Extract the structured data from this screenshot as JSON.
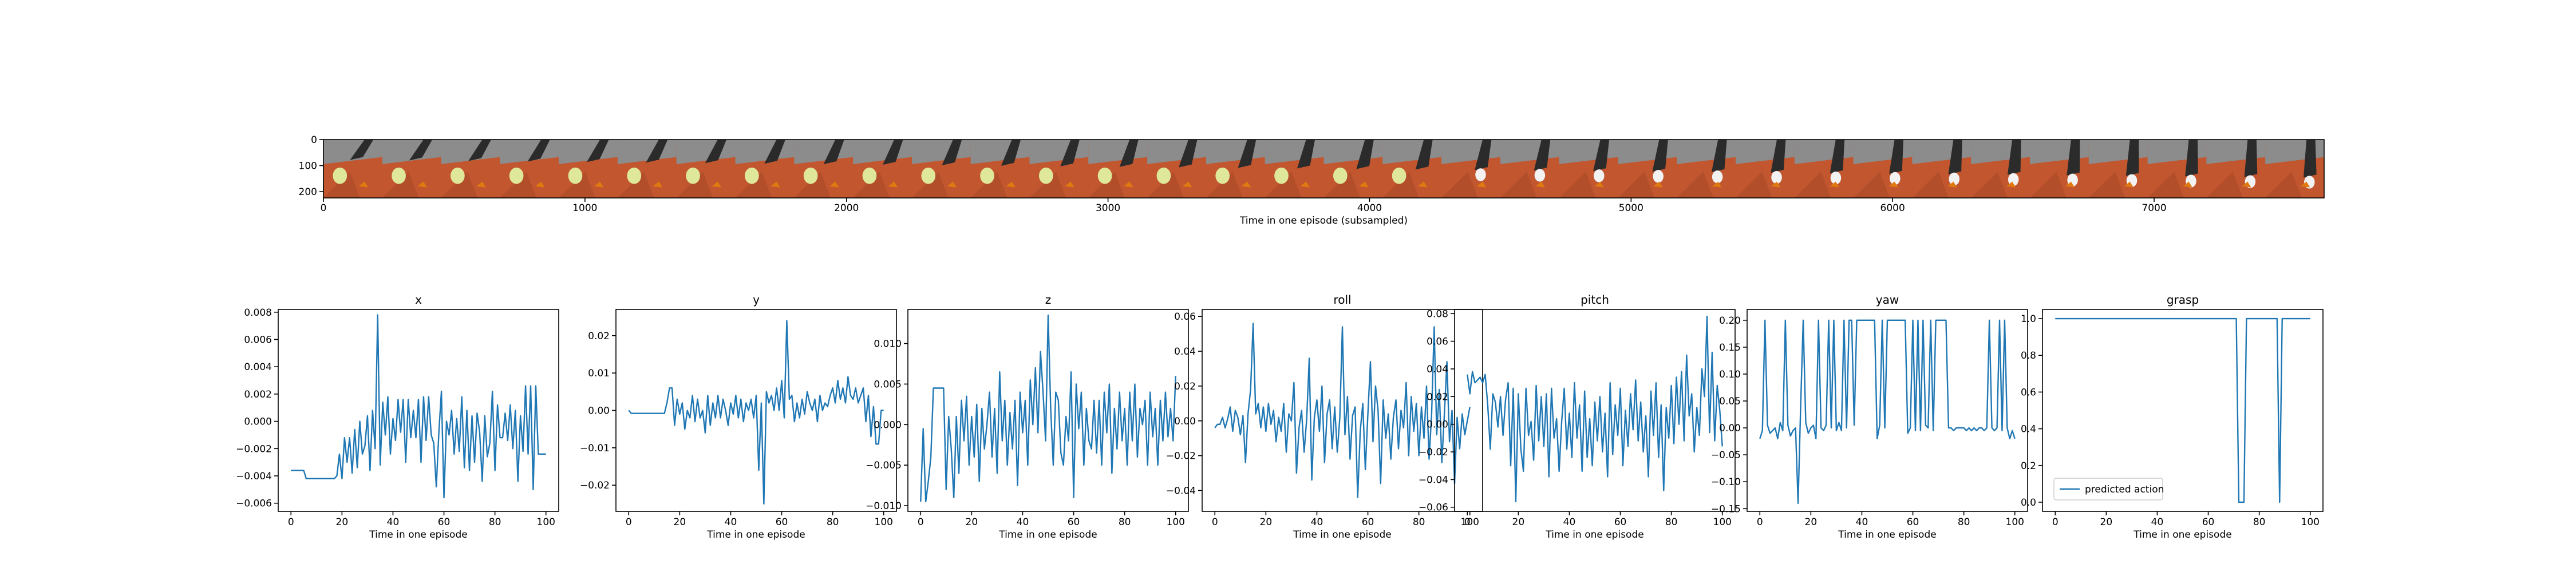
{
  "strip": {
    "xlabel": "Time in one episode (subsampled)",
    "x_ticks": [
      0,
      1000,
      2000,
      3000,
      4000,
      5000,
      6000,
      7000
    ],
    "x_range": [
      0,
      7650
    ],
    "y_ticks": [
      0,
      100,
      200
    ],
    "y_range": [
      0,
      224
    ],
    "frame_count": 34,
    "colors": {
      "floor": "#c2562f",
      "wall": "#8c8c8c",
      "robot": "#2b2b2b",
      "ball": "#dfe89a",
      "object": "#e07a10"
    }
  },
  "chart_data": [
    {
      "type": "line",
      "title": "x",
      "xlabel": "Time in one episode",
      "ylabel": "",
      "xlim": [
        -5,
        105
      ],
      "ylim": [
        -0.0066,
        0.0082
      ],
      "x_ticks": [
        0,
        20,
        40,
        60,
        80,
        100
      ],
      "y_ticks": [
        -0.006,
        -0.004,
        -0.002,
        0.0,
        0.002,
        0.004,
        0.006,
        0.008
      ],
      "y_tick_labels": [
        "−0.006",
        "−0.004",
        "−0.002",
        "0.000",
        "0.002",
        "0.004",
        "0.006",
        "0.008"
      ],
      "y_decimals": 3,
      "color": "#1f77b4",
      "y": [
        -0.0036,
        -0.0036,
        -0.0036,
        -0.0036,
        -0.0036,
        -0.0036,
        -0.0042,
        -0.0042,
        -0.0042,
        -0.0042,
        -0.0042,
        -0.0042,
        -0.0042,
        -0.0042,
        -0.0042,
        -0.0042,
        -0.0042,
        -0.0042,
        -0.004,
        -0.0024,
        -0.0042,
        -0.0012,
        -0.003,
        -0.0012,
        -0.0038,
        -0.0006,
        -0.0034,
        0.0,
        -0.0024,
        -0.0018,
        0.0004,
        -0.0036,
        0.0008,
        -0.002,
        0.0078,
        -0.0032,
        0.0014,
        -0.001,
        0.0018,
        -0.0024,
        0.0002,
        -0.0014,
        0.0016,
        -0.0008,
        0.0016,
        -0.003,
        0.0016,
        -0.0012,
        0.0008,
        -0.0012,
        0.0016,
        -0.003,
        0.0018,
        -0.0014,
        0.0018,
        -0.001,
        -0.0016,
        -0.0048,
        -0.0008,
        0.0022,
        -0.0056,
        0.0,
        -0.001,
        0.0008,
        -0.0024,
        0.0002,
        -0.0022,
        0.0018,
        -0.0034,
        0.0008,
        -0.0036,
        0.0004,
        -0.003,
        0.0006,
        -0.0008,
        -0.0044,
        0.0004,
        -0.0026,
        -0.0016,
        0.0022,
        -0.0036,
        0.0012,
        -0.0012,
        -0.0012,
        0.0006,
        -0.0014,
        0.0012,
        -0.002,
        0.0008,
        -0.0044,
        0.0004,
        -0.0022,
        0.0026,
        -0.0024,
        0.0026,
        -0.005,
        0.0026,
        -0.0024,
        -0.0024,
        -0.0024,
        -0.0024
      ]
    },
    {
      "type": "line",
      "title": "y",
      "xlabel": "Time in one episode",
      "ylabel": "",
      "xlim": [
        -5,
        105
      ],
      "ylim": [
        -0.027,
        0.027
      ],
      "x_ticks": [
        0,
        20,
        40,
        60,
        80,
        100
      ],
      "y_ticks": [
        -0.02,
        -0.01,
        0.0,
        0.01,
        0.02
      ],
      "y_tick_labels": [
        "−0.02",
        "−0.01",
        "0.00",
        "0.01",
        "0.02"
      ],
      "y_decimals": 3,
      "color": "#1f77b4",
      "y": [
        0.0,
        -0.0008,
        -0.0008,
        -0.0008,
        -0.0008,
        -0.0008,
        -0.0008,
        -0.0008,
        -0.0008,
        -0.0008,
        -0.0008,
        -0.0008,
        -0.0008,
        -0.0008,
        -0.0008,
        0.002,
        0.006,
        0.006,
        -0.004,
        0.003,
        -0.001,
        0.002,
        -0.005,
        0.0,
        -0.002,
        0.004,
        -0.003,
        0.003,
        -0.002,
        0.0,
        -0.006,
        0.004,
        -0.004,
        0.002,
        -0.002,
        0.004,
        -0.002,
        0.003,
        0.0,
        -0.004,
        0.002,
        -0.001,
        0.004,
        -0.002,
        0.003,
        -0.003,
        0.002,
        0.0,
        0.003,
        -0.002,
        0.004,
        -0.016,
        0.002,
        -0.025,
        0.005,
        0.002,
        0.004,
        0.0,
        0.006,
        0.0,
        0.008,
        -0.002,
        0.024,
        0.003,
        0.004,
        -0.003,
        0.002,
        -0.002,
        0.003,
        -0.001,
        0.005,
        0.002,
        0.0,
        0.003,
        -0.003,
        0.004,
        0.0,
        0.002,
        0.001,
        0.004,
        0.006,
        0.002,
        0.008,
        0.003,
        0.006,
        0.002,
        0.009,
        0.004,
        0.003,
        0.006,
        0.002,
        0.004,
        0.006,
        -0.003,
        0.004,
        -0.007,
        0.001,
        -0.009,
        -0.009,
        0.0,
        0.0
      ]
    },
    {
      "type": "line",
      "title": "z",
      "xlabel": "Time in one episode",
      "ylabel": "",
      "xlim": [
        -5,
        105
      ],
      "ylim": [
        -0.0107,
        0.0142
      ],
      "x_ticks": [
        0,
        20,
        40,
        60,
        80,
        100
      ],
      "y_ticks": [
        -0.01,
        -0.005,
        0.0,
        0.005,
        0.01
      ],
      "y_tick_labels": [
        "−0.010",
        "−0.005",
        "0.000",
        "0.005",
        "0.010"
      ],
      "y_decimals": 4,
      "color": "#1f77b4",
      "y": [
        -0.0095,
        -0.0005,
        -0.0095,
        -0.007,
        -0.004,
        0.0045,
        0.0045,
        0.0045,
        0.0045,
        0.0045,
        -0.008,
        0.001,
        -0.003,
        -0.009,
        0.001,
        -0.006,
        0.003,
        -0.002,
        0.0035,
        -0.005,
        0.001,
        -0.004,
        0.0025,
        -0.007,
        0.002,
        -0.003,
        0.0,
        0.004,
        -0.004,
        0.002,
        -0.006,
        0.0065,
        -0.002,
        0.003,
        -0.005,
        0.0015,
        -0.003,
        0.003,
        -0.0075,
        0.004,
        -0.001,
        0.003,
        -0.005,
        0.0055,
        0.0,
        0.007,
        -0.001,
        0.009,
        0.004,
        -0.002,
        0.0135,
        0.002,
        -0.005,
        0.004,
        0.003,
        -0.0035,
        -0.005,
        0.001,
        -0.002,
        0.0065,
        -0.009,
        0.005,
        -0.0005,
        0.004,
        -0.005,
        0.002,
        -0.002,
        -0.003,
        0.003,
        -0.0035,
        0.003,
        -0.005,
        0.004,
        -0.001,
        0.005,
        -0.006,
        0.002,
        -0.003,
        0.004,
        -0.002,
        0.002,
        -0.005,
        0.004,
        -0.002,
        0.005,
        -0.004,
        0.002,
        0.0,
        0.003,
        -0.005,
        0.004,
        -0.0015,
        0.002,
        -0.005,
        0.003,
        -0.002,
        0.004,
        -0.0015,
        0.002,
        -0.002,
        0.006
      ]
    },
    {
      "type": "line",
      "title": "roll",
      "xlabel": "Time in one episode",
      "ylabel": "",
      "xlim": [
        -5,
        105
      ],
      "ylim": [
        -0.052,
        0.064
      ],
      "x_ticks": [
        0,
        20,
        40,
        60,
        80,
        100
      ],
      "y_ticks": [
        -0.04,
        -0.02,
        0.0,
        0.02,
        0.04,
        0.06
      ],
      "y_tick_labels": [
        "−0.04",
        "−0.02",
        "0.00",
        "0.02",
        "0.04",
        "0.06"
      ],
      "y_decimals": 3,
      "color": "#1f77b4",
      "y": [
        -0.004,
        -0.002,
        -0.002,
        0.002,
        -0.004,
        0.001,
        0.008,
        -0.006,
        0.006,
        0.002,
        -0.008,
        0.003,
        -0.024,
        0.004,
        0.018,
        0.056,
        0.004,
        0.01,
        -0.004,
        0.008,
        -0.006,
        0.01,
        -0.002,
        0.006,
        -0.012,
        0.002,
        -0.006,
        0.01,
        -0.018,
        0.004,
        0.0,
        0.022,
        -0.03,
        -0.004,
        0.006,
        -0.018,
        0.001,
        0.036,
        -0.034,
        0.002,
        0.012,
        -0.006,
        0.02,
        -0.024,
        0.004,
        0.012,
        -0.016,
        0.008,
        -0.018,
        0.002,
        0.054,
        -0.008,
        0.014,
        -0.022,
        0.003,
        0.008,
        -0.044,
        -0.006,
        0.01,
        -0.028,
        0.004,
        0.034,
        -0.012,
        0.02,
        0.006,
        -0.036,
        0.012,
        -0.01,
        0.004,
        -0.022,
        0.002,
        0.012,
        -0.016,
        0.006,
        -0.004,
        0.022,
        -0.02,
        0.014,
        -0.006,
        0.01,
        -0.02,
        0.008,
        -0.01,
        0.02,
        -0.022,
        0.004,
        0.054,
        -0.008,
        0.018,
        -0.024,
        0.004,
        0.034,
        -0.012,
        0.006,
        -0.036,
        0.002,
        -0.016,
        0.004,
        -0.008,
        0.0,
        0.008
      ]
    },
    {
      "type": "line",
      "title": "pitch",
      "xlabel": "Time in one episode",
      "ylabel": "",
      "xlim": [
        -5,
        105
      ],
      "ylim": [
        -0.063,
        0.083
      ],
      "x_ticks": [
        0,
        20,
        40,
        60,
        80,
        100
      ],
      "y_ticks": [
        -0.06,
        -0.04,
        -0.02,
        0.0,
        0.02,
        0.04,
        0.06,
        0.08
      ],
      "y_tick_labels": [
        "−0.06",
        "−0.04",
        "−0.02",
        "0.00",
        "0.02",
        "0.04",
        "0.06",
        "0.08"
      ],
      "y_decimals": 3,
      "color": "#1f77b4",
      "y": [
        0.036,
        0.022,
        0.038,
        0.03,
        0.032,
        0.034,
        0.03,
        0.036,
        0.014,
        -0.018,
        0.022,
        0.016,
        -0.002,
        0.02,
        -0.008,
        0.018,
        0.03,
        -0.03,
        0.026,
        -0.056,
        0.022,
        -0.018,
        -0.034,
        0.026,
        -0.008,
        0.002,
        -0.026,
        0.028,
        -0.012,
        0.02,
        -0.016,
        0.022,
        -0.038,
        0.026,
        -0.01,
        0.004,
        -0.034,
        0.002,
        0.026,
        -0.018,
        0.008,
        -0.024,
        0.03,
        -0.01,
        0.014,
        -0.034,
        0.024,
        -0.024,
        0.004,
        -0.03,
        0.016,
        -0.012,
        0.02,
        -0.02,
        0.008,
        -0.038,
        0.03,
        -0.022,
        0.014,
        -0.008,
        0.026,
        -0.03,
        0.01,
        -0.016,
        0.022,
        -0.004,
        0.032,
        -0.012,
        0.016,
        -0.02,
        0.006,
        -0.038,
        0.024,
        -0.008,
        0.03,
        -0.024,
        0.014,
        -0.048,
        0.012,
        -0.01,
        0.028,
        -0.014,
        0.034,
        0.0,
        0.038,
        -0.012,
        0.05,
        0.006,
        0.022,
        -0.02,
        0.012,
        -0.008,
        0.04,
        0.02,
        0.078,
        -0.006,
        0.052,
        -0.012,
        0.028,
        0.01,
        -0.016
      ]
    },
    {
      "type": "line",
      "title": "yaw",
      "xlabel": "Time in one episode",
      "ylabel": "",
      "xlim": [
        -5,
        105
      ],
      "ylim": [
        -0.155,
        0.22
      ],
      "x_ticks": [
        0,
        20,
        40,
        60,
        80,
        100
      ],
      "y_ticks": [
        -0.15,
        -0.1,
        -0.05,
        0.0,
        0.05,
        0.1,
        0.15,
        0.2
      ],
      "y_tick_labels": [
        "−0.15",
        "−0.10",
        "−0.05",
        "0.00",
        "0.05",
        "0.10",
        "0.15",
        "0.20"
      ],
      "y_decimals": 3,
      "color": "#1f77b4",
      "y": [
        -0.02,
        -0.005,
        0.2,
        0.005,
        -0.01,
        -0.005,
        0.0,
        -0.02,
        0.01,
        -0.005,
        0.2,
        0.005,
        -0.015,
        -0.005,
        0.0,
        -0.14,
        0.04,
        0.2,
        0.01,
        -0.01,
        0.0,
        0.005,
        -0.02,
        0.2,
        0.0,
        -0.005,
        0.005,
        0.2,
        0.0,
        0.2,
        -0.005,
        0.01,
        -0.005,
        0.2,
        0.0,
        0.2,
        0.2,
        0.005,
        0.2,
        0.2,
        0.2,
        0.2,
        0.2,
        0.2,
        0.2,
        0.2,
        -0.02,
        0.005,
        0.2,
        0.0,
        0.2,
        0.2,
        0.2,
        0.2,
        0.2,
        0.2,
        0.2,
        0.2,
        -0.01,
        0.0,
        0.2,
        -0.005,
        0.2,
        -0.005,
        0.2,
        0.005,
        0.0,
        0.2,
        -0.005,
        0.2,
        0.2,
        0.2,
        0.2,
        0.2,
        0.0,
        0.0,
        -0.005,
        0.0,
        0.0,
        0.0,
        0.0,
        -0.005,
        0.0,
        -0.005,
        0.0,
        -0.005,
        0.0,
        0.0,
        -0.005,
        0.0,
        0.2,
        0.0,
        -0.005,
        0.0,
        0.2,
        -0.005,
        0.2,
        0.0,
        -0.02,
        -0.005,
        -0.02
      ]
    },
    {
      "type": "line",
      "title": "grasp",
      "xlabel": "Time in one episode",
      "ylabel": "",
      "xlim": [
        -5,
        105
      ],
      "ylim": [
        -0.05,
        1.05
      ],
      "x_ticks": [
        0,
        20,
        40,
        60,
        80,
        100
      ],
      "y_ticks": [
        0.0,
        0.2,
        0.4,
        0.6,
        0.8,
        1.0
      ],
      "y_tick_labels": [
        "0.0",
        "0.2",
        "0.4",
        "0.6",
        "0.8",
        "1.0"
      ],
      "y_decimals": 1,
      "color": "#1f77b4",
      "legend": {
        "label": "predicted action",
        "position": "lower left"
      },
      "y": [
        1,
        1,
        1,
        1,
        1,
        1,
        1,
        1,
        1,
        1,
        1,
        1,
        1,
        1,
        1,
        1,
        1,
        1,
        1,
        1,
        1,
        1,
        1,
        1,
        1,
        1,
        1,
        1,
        1,
        1,
        1,
        1,
        1,
        1,
        1,
        1,
        1,
        1,
        1,
        1,
        1,
        1,
        1,
        1,
        1,
        1,
        1,
        1,
        1,
        1,
        1,
        1,
        1,
        1,
        1,
        1,
        1,
        1,
        1,
        1,
        1,
        1,
        1,
        1,
        1,
        1,
        1,
        1,
        1,
        1,
        1,
        1,
        0,
        0,
        0,
        1,
        1,
        1,
        1,
        1,
        1,
        1,
        1,
        1,
        1,
        1,
        1,
        1,
        0,
        1,
        1,
        1,
        1,
        1,
        1,
        1,
        1,
        1,
        1,
        1,
        1
      ]
    }
  ]
}
